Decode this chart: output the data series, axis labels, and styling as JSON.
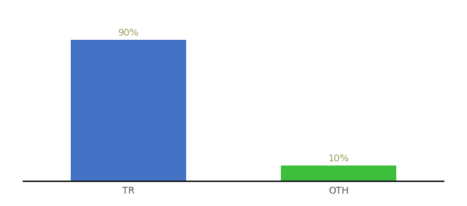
{
  "categories": [
    "TR",
    "OTH"
  ],
  "values": [
    90,
    10
  ],
  "bar_colors": [
    "#4472c4",
    "#3dbf3d"
  ],
  "label_texts": [
    "90%",
    "10%"
  ],
  "label_color": "#a0a060",
  "ylim": [
    0,
    105
  ],
  "background_color": "#ffffff",
  "bar_width": 0.55,
  "label_fontsize": 10,
  "tick_fontsize": 10,
  "tick_color": "#555555",
  "spine_color": "#111111"
}
